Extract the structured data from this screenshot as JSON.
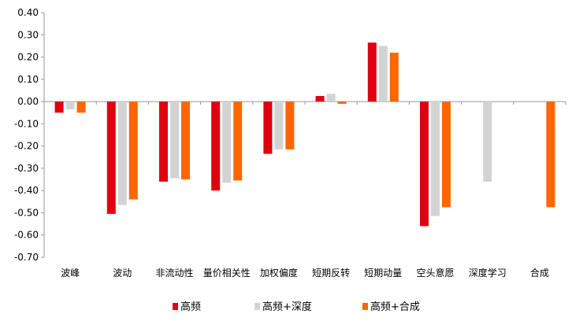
{
  "chart_data": {
    "type": "bar",
    "title": "",
    "xlabel": "",
    "ylabel": "",
    "ylim": [
      -0.7,
      0.4
    ],
    "ytick_step": 0.1,
    "grid": false,
    "legend_position": "bottom",
    "categories": [
      "波峰",
      "波动",
      "非流动性",
      "量价相关性",
      "加权偏度",
      "短期反转",
      "短期动量",
      "空头意愿",
      "深度学习",
      "合成"
    ],
    "series": [
      {
        "name": "高频",
        "color": "#e0000e",
        "values": [
          -0.05,
          -0.505,
          -0.36,
          -0.4,
          -0.235,
          0.025,
          0.265,
          -0.56,
          null,
          null
        ]
      },
      {
        "name": "高频+深度",
        "color": "#d3d3d3",
        "values": [
          -0.035,
          -0.465,
          -0.345,
          -0.365,
          -0.215,
          0.035,
          0.25,
          -0.515,
          -0.36,
          null
        ]
      },
      {
        "name": "高频+合成",
        "color": "#ff6600",
        "values": [
          -0.05,
          -0.44,
          -0.35,
          -0.355,
          -0.215,
          -0.01,
          0.22,
          -0.475,
          null,
          -0.475
        ]
      }
    ]
  }
}
